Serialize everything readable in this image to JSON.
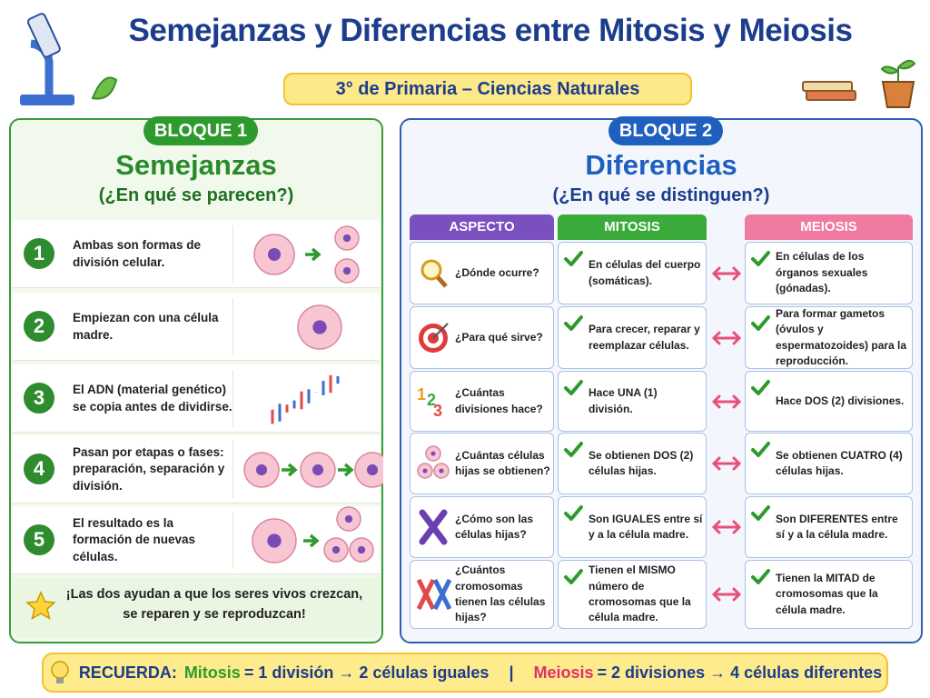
{
  "header": {
    "title": "Semejanzas y Diferencias entre Mitosis y Meiosis",
    "subtitle": "3° de Primaria – Ciencias Naturales"
  },
  "block1": {
    "label": "BLOQUE 1",
    "heading": "Semejanzas",
    "question": "(¿En qué se parecen?)",
    "items": [
      {
        "number": "1",
        "text": "Ambas son formas de división celular."
      },
      {
        "number": "2",
        "text": "Empiezan con una célula madre."
      },
      {
        "number": "3",
        "text": "El ADN (material genético) se copia antes de dividirse."
      },
      {
        "number": "4",
        "text": "Pasan por etapas o fases: preparación, separación y división."
      },
      {
        "number": "5",
        "text": "El resultado es la formación de nuevas células."
      }
    ],
    "note": "¡Las dos ayudan a que los seres vivos crezcan, se reparen y se reproduzcan!"
  },
  "block2": {
    "label": "BLOQUE 2",
    "heading": "Diferencias",
    "question": "(¿En qué se distinguen?)",
    "headers": [
      "ASPECTO",
      "MITOSIS",
      "MEIOSIS"
    ],
    "rows": [
      {
        "aspect": "¿Dónde ocurre?",
        "mitosis": "En células del cuerpo (somáticas).",
        "meiosis": "En células de los órganos sexuales (gónadas)."
      },
      {
        "aspect": "¿Para qué sirve?",
        "mitosis": "Para crecer, reparar y reemplazar células.",
        "meiosis": "Para formar gametos (óvulos y espermatozoides) para la reproducción."
      },
      {
        "aspect": "¿Cuántas divisiones hace?",
        "mitosis": "Hace UNA (1) división.",
        "meiosis": "Hace DOS (2) divisiones."
      },
      {
        "aspect": "¿Cuántas células hijas se obtienen?",
        "mitosis": "Se obtienen DOS (2) células hijas.",
        "meiosis": "Se obtienen CUATRO (4) células hijas."
      },
      {
        "aspect": "¿Cómo son las células hijas?",
        "mitosis": "Son IGUALES entre sí y a la célula madre.",
        "meiosis": "Son DIFERENTES entre sí y a la célula madre."
      },
      {
        "aspect": "¿Cuántos cromosomas tienen las células hijas?",
        "mitosis": "Tienen el MISMO número de cromosomas que la célula madre.",
        "meiosis": "Tienen la MITAD de cromosomas que la célula madre."
      }
    ]
  },
  "footer": {
    "label": "RECUERDA:",
    "mitosis": "Mitosis",
    "mitosis_rule": "= 1 división → 2 células iguales",
    "separator": "|",
    "meiosis": "Meiosis",
    "meiosis_rule": "= 2 divisiones → 4 células diferentes"
  }
}
